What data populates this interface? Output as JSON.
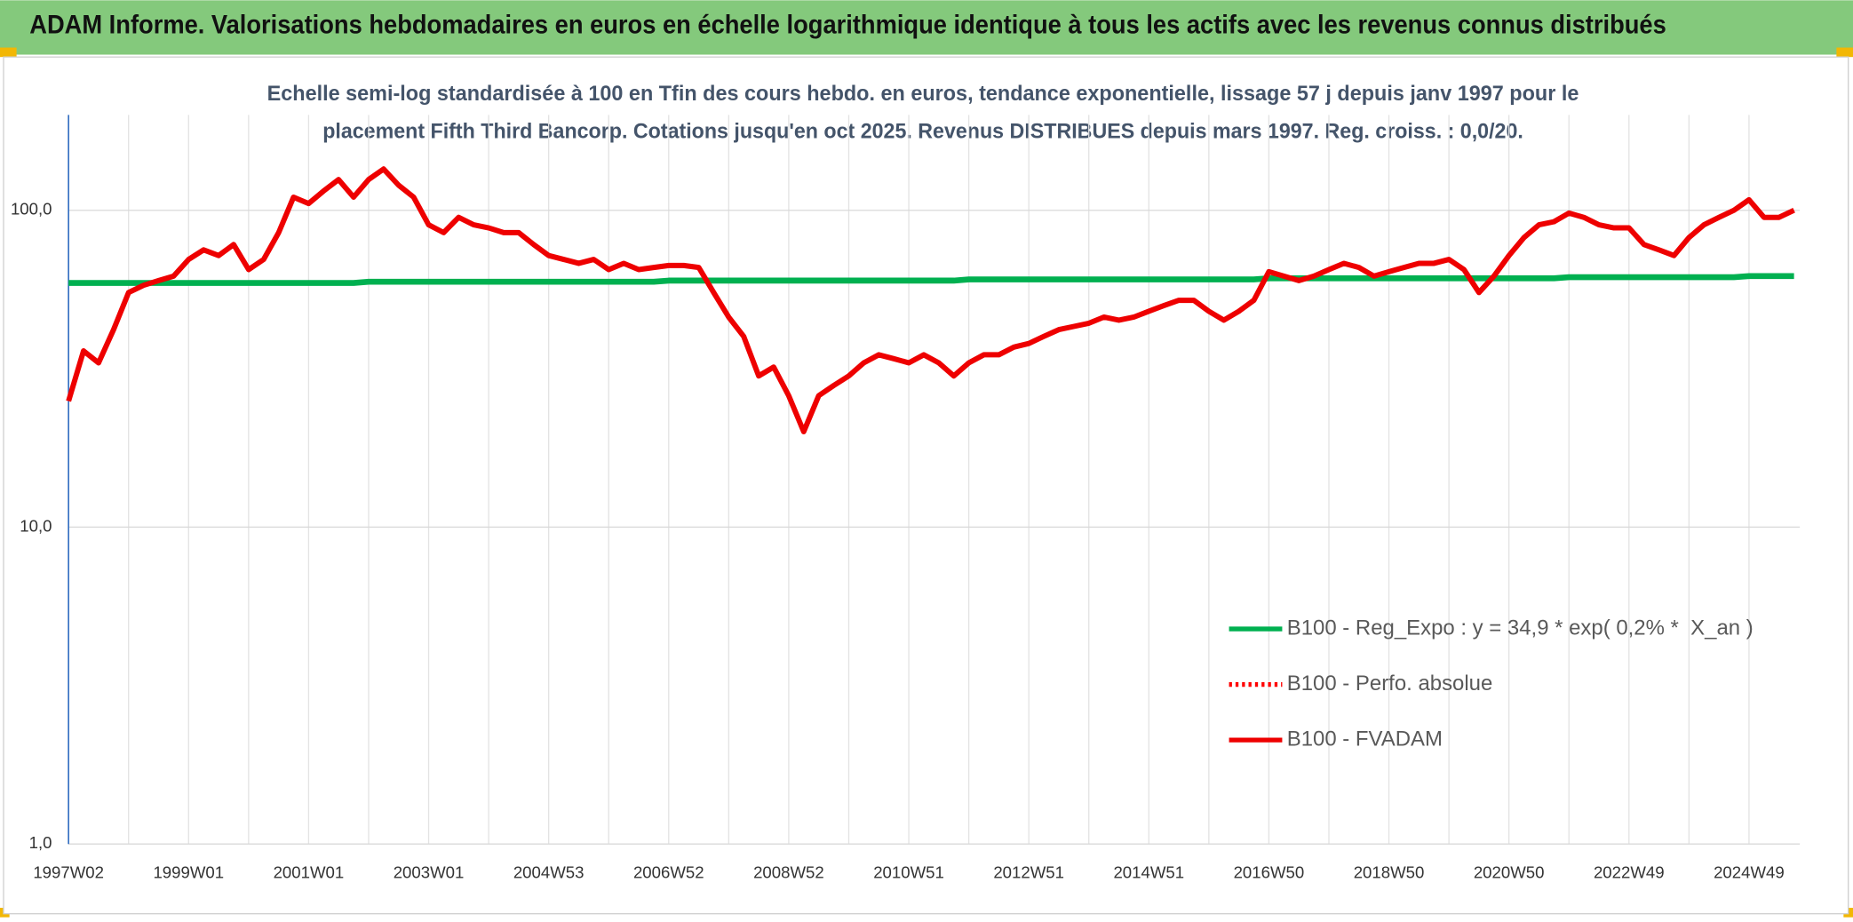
{
  "chart_data": {
    "type": "line",
    "title": "ADAM Informe. Valorisations hebdomadaires en euros en échelle logarithmique identique à tous les actifs avec les revenus connus distribués",
    "subtitle": [
      "Echelle semi-log standardisée à 100 en Tfin des cours hebdo. en euros, tendance exponentielle, lissage 57 j depuis janv 1997 pour le",
      "placement Fifth Third Bancorp. Cotations jusqu'en oct 2025. Revenus DISTRIBUES depuis mars 1997. Reg. croiss. : 0,0/20."
    ],
    "categories": [
      "1997W02",
      null,
      null,
      null,
      null,
      null,
      null,
      null,
      "1999W01",
      null,
      null,
      null,
      null,
      null,
      null,
      null,
      "2001W01",
      null,
      null,
      null,
      null,
      null,
      null,
      null,
      "2003W01",
      null,
      null,
      null,
      null,
      null,
      null,
      null,
      "2004W53",
      null,
      null,
      null,
      null,
      null,
      null,
      null,
      "2006W52",
      null,
      null,
      null,
      null,
      null,
      null,
      null,
      "2008W52",
      null,
      null,
      null,
      null,
      null,
      null,
      null,
      "2010W51",
      null,
      null,
      null,
      null,
      null,
      null,
      null,
      "2012W51",
      null,
      null,
      null,
      null,
      null,
      null,
      null,
      "2014W51",
      null,
      null,
      null,
      null,
      null,
      null,
      null,
      "2016W50",
      null,
      null,
      null,
      null,
      null,
      null,
      null,
      "2018W50",
      null,
      null,
      null,
      null,
      null,
      null,
      null,
      "2020W50",
      null,
      null,
      null,
      null,
      null,
      null,
      null,
      "2022W49",
      null,
      null,
      null,
      null,
      null,
      null,
      null,
      "2024W49",
      null,
      null,
      null
    ],
    "series": [
      {
        "name": "B100 - Reg_Expo : y = 34,9 * exp( 0,2% *  X_an )",
        "color": "#00b050",
        "dash": "solid",
        "values": [
          59,
          59,
          59,
          59,
          59,
          59,
          59,
          59,
          59,
          59,
          59,
          59,
          59,
          59,
          59,
          59,
          59,
          59,
          59,
          59,
          59.5,
          59.5,
          59.5,
          59.5,
          59.5,
          59.5,
          59.5,
          59.5,
          59.5,
          59.5,
          59.5,
          59.5,
          59.5,
          59.5,
          59.5,
          59.5,
          59.5,
          59.5,
          59.5,
          59.5,
          60,
          60,
          60,
          60,
          60,
          60,
          60,
          60,
          60,
          60,
          60,
          60,
          60,
          60,
          60,
          60,
          60,
          60,
          60,
          60,
          60.5,
          60.5,
          60.5,
          60.5,
          60.5,
          60.5,
          60.5,
          60.5,
          60.5,
          60.5,
          60.5,
          60.5,
          60.5,
          60.5,
          60.5,
          60.5,
          60.5,
          60.5,
          60.5,
          60.5,
          61,
          61,
          61,
          61,
          61,
          61,
          61,
          61,
          61,
          61,
          61,
          61,
          61,
          61,
          61,
          61,
          61,
          61,
          61,
          61,
          61.5,
          61.5,
          61.5,
          61.5,
          61.5,
          61.5,
          61.5,
          61.5,
          61.5,
          61.5,
          61.5,
          61.5,
          62,
          62,
          62,
          62
        ]
      },
      {
        "name": "B100 - Perfo. absolue",
        "color": "#ff0000",
        "dash": "dot",
        "values": [
          null,
          null,
          null,
          null,
          null,
          null,
          null,
          null,
          null,
          null,
          null,
          null,
          null,
          null,
          null,
          null,
          null,
          null,
          null,
          null,
          null,
          null,
          null,
          null,
          null,
          null,
          null,
          null,
          null,
          null,
          null,
          null,
          null,
          null,
          null,
          null,
          null,
          null,
          null,
          null,
          null,
          null,
          null,
          null,
          null,
          null,
          null,
          null,
          null,
          null,
          null,
          null,
          null,
          null,
          null,
          null,
          null,
          null,
          null,
          null,
          null,
          null,
          null,
          null,
          null,
          null,
          null,
          null,
          null,
          null,
          null,
          null,
          null,
          null,
          null,
          null,
          null,
          null,
          null,
          null,
          null,
          null,
          null,
          null,
          null,
          null,
          null,
          null,
          null,
          null,
          null,
          null,
          null,
          null,
          null,
          null,
          null,
          null,
          null,
          null,
          null,
          null,
          null,
          null,
          null,
          null,
          null,
          null,
          null,
          null,
          null,
          null,
          null,
          null,
          null,
          null
        ]
      },
      {
        "name": "B100 - FVADAM",
        "color": "#ee0000",
        "dash": "solid",
        "values": [
          25,
          36,
          33,
          42,
          55,
          58,
          60,
          62,
          70,
          75,
          72,
          78,
          65,
          70,
          85,
          110,
          105,
          115,
          125,
          110,
          125,
          135,
          120,
          110,
          90,
          85,
          95,
          90,
          88,
          85,
          85,
          78,
          72,
          70,
          68,
          70,
          65,
          68,
          65,
          66,
          67,
          67,
          66,
          55,
          46,
          40,
          30,
          32,
          26,
          20,
          26,
          28,
          30,
          33,
          35,
          34,
          33,
          35,
          33,
          30,
          33,
          35,
          35,
          37,
          38,
          40,
          42,
          43,
          44,
          46,
          45,
          46,
          48,
          50,
          52,
          52,
          48,
          45,
          48,
          52,
          64,
          62,
          60,
          62,
          65,
          68,
          66,
          62,
          64,
          66,
          68,
          68,
          70,
          65,
          55,
          62,
          72,
          82,
          90,
          92,
          98,
          95,
          90,
          88,
          88,
          78,
          75,
          72,
          82,
          90,
          95,
          100,
          108,
          95,
          95,
          100
        ]
      }
    ],
    "log_scale": true,
    "ylim": [
      1,
      200
    ],
    "yticks": [
      {
        "value": 1,
        "label": "1,0"
      },
      {
        "value": 10,
        "label": "10,0"
      },
      {
        "value": 100,
        "label": "100,0"
      }
    ],
    "grid": true,
    "legend_position": "right"
  }
}
